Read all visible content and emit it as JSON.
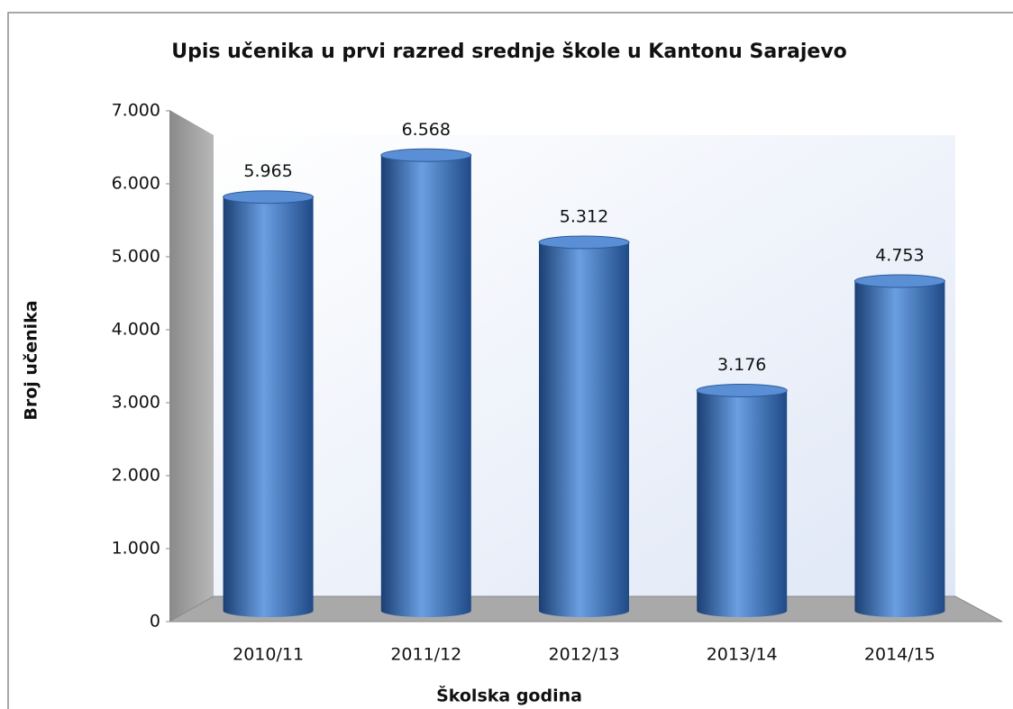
{
  "chart_data": {
    "type": "bar",
    "title": "Upis učenika u prvi razred srednje škole u Kantonu Sarajevo",
    "x_label": "Školska godina",
    "y_label": "Broj učenika",
    "categories": [
      "2010/11",
      "2011/12",
      "2012/13",
      "2013/14",
      "2014/15"
    ],
    "values": [
      5965,
      6568,
      5312,
      3176,
      4753
    ],
    "value_labels": [
      "5.965",
      "6.568",
      "5.312",
      "3.176",
      "4.753"
    ],
    "color": "#3f74c0",
    "ylim": [
      0,
      7000
    ],
    "yticks": [
      0,
      {
        "value": 1000,
        "label": "1.000"
      },
      {
        "value": 2000,
        "label": "2.000"
      },
      {
        "value": 3000,
        "label": "3.000"
      },
      {
        "value": 4000,
        "label": "4.000"
      },
      {
        "value": 5000,
        "label": "5.000"
      },
      {
        "value": 6000,
        "label": "6.000"
      },
      {
        "value": 7000,
        "label": "7.000"
      }
    ],
    "grid": false
  }
}
